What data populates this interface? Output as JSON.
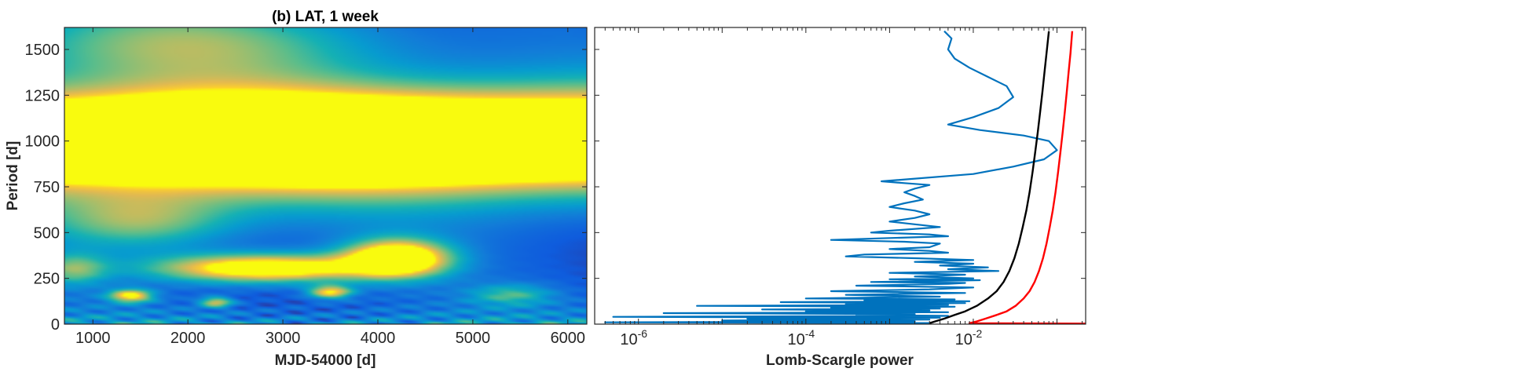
{
  "chart_data": [
    {
      "type": "heatmap",
      "title": "(b) LAT, 1 week",
      "xlabel": "MJD-54000 [d]",
      "ylabel": "Period [d]",
      "xlim": [
        700,
        6200
      ],
      "ylim": [
        0,
        1620
      ],
      "xticks": [
        1000,
        2000,
        3000,
        4000,
        5000,
        6000
      ],
      "yticks": [
        0,
        250,
        500,
        750,
        1000,
        1250,
        1500
      ],
      "colormap": "parula",
      "features": [
        {
          "t": 3500,
          "period": 1000,
          "sigma_t": 5000,
          "sigma_p": 170,
          "power": 1.6
        },
        {
          "t": 3000,
          "period": 1000,
          "sigma_t": 6000,
          "sigma_p": 250,
          "power": 0.55
        },
        {
          "t": 2000,
          "period": 1540,
          "sigma_t": 1500,
          "sigma_p": 160,
          "power": 0.55
        },
        {
          "t": 1500,
          "period": 560,
          "sigma_t": 700,
          "sigma_p": 110,
          "power": 0.55
        },
        {
          "t": 2800,
          "period": 305,
          "sigma_t": 800,
          "sigma_p": 55,
          "power": 1.2
        },
        {
          "t": 4200,
          "period": 360,
          "sigma_t": 380,
          "sigma_p": 70,
          "power": 1.3
        },
        {
          "t": 1400,
          "period": 155,
          "sigma_t": 160,
          "sigma_p": 25,
          "power": 0.9
        },
        {
          "t": 3500,
          "period": 175,
          "sigma_t": 160,
          "sigma_p": 25,
          "power": 0.85
        },
        {
          "t": 2300,
          "period": 120,
          "sigma_t": 120,
          "sigma_p": 20,
          "power": 0.7
        },
        {
          "t": 5400,
          "period": 160,
          "sigma_t": 300,
          "sigma_p": 40,
          "power": 0.4
        },
        {
          "t": 800,
          "period": 300,
          "sigma_t": 250,
          "sigma_p": 60,
          "power": 0.5
        }
      ]
    },
    {
      "type": "line",
      "xscale": "log",
      "xlabel": "Lomb-Scargle power",
      "ylabel": "",
      "xlim": [
        3e-07,
        0.22
      ],
      "ylim": [
        0,
        1620
      ],
      "xticks": [
        {
          "value": 1e-06,
          "base": "10",
          "exp": "-6"
        },
        {
          "value": 0.0001,
          "base": "10",
          "exp": "-4"
        },
        {
          "value": 0.01,
          "base": "10",
          "exp": "-2"
        }
      ],
      "series": [
        {
          "color": "#0072BD",
          "points": [
            [
              0.0045,
              1600
            ],
            [
              0.0055,
              1560
            ],
            [
              0.005,
              1500
            ],
            [
              0.006,
              1450
            ],
            [
              0.009,
              1400
            ],
            [
              0.015,
              1350
            ],
            [
              0.025,
              1300
            ],
            [
              0.03,
              1240
            ],
            [
              0.02,
              1180
            ],
            [
              0.01,
              1130
            ],
            [
              0.005,
              1090
            ],
            [
              0.012,
              1060
            ],
            [
              0.04,
              1030
            ],
            [
              0.08,
              1000
            ],
            [
              0.1,
              950
            ],
            [
              0.07,
              900
            ],
            [
              0.03,
              860
            ],
            [
              0.01,
              820
            ],
            [
              0.0008,
              780
            ],
            [
              0.0015,
              770
            ],
            [
              0.003,
              760
            ],
            [
              0.002,
              740
            ],
            [
              0.0015,
              720
            ],
            [
              0.002,
              700
            ],
            [
              0.0025,
              680
            ],
            [
              0.0015,
              660
            ],
            [
              0.001,
              640
            ],
            [
              0.002,
              620
            ],
            [
              0.003,
              600
            ],
            [
              0.002,
              580
            ],
            [
              0.001,
              560
            ],
            [
              0.002,
              545
            ],
            [
              0.004,
              530
            ],
            [
              0.001,
              510
            ],
            [
              0.0006,
              500
            ],
            [
              0.003,
              490
            ],
            [
              0.005,
              480
            ],
            [
              0.001,
              470
            ],
            [
              0.0002,
              460
            ],
            [
              0.0015,
              450
            ],
            [
              0.004,
              440
            ],
            [
              0.003,
              420
            ],
            [
              0.001,
              410
            ],
            [
              0.003,
              400
            ],
            [
              0.005,
              390
            ],
            [
              0.0005,
              380
            ],
            [
              0.0003,
              370
            ],
            [
              0.002,
              360
            ],
            [
              0.01,
              350
            ],
            [
              0.002,
              340
            ],
            [
              0.01,
              330
            ],
            [
              0.004,
              320
            ],
            [
              0.015,
              310
            ],
            [
              0.005,
              300
            ],
            [
              0.02,
              290
            ],
            [
              0.001,
              280
            ],
            [
              0.008,
              270
            ],
            [
              0.002,
              260
            ],
            [
              0.01,
              250
            ],
            [
              0.001,
              245
            ],
            [
              0.012,
              240
            ],
            [
              0.0006,
              230
            ],
            [
              0.008,
              225
            ],
            [
              0.005,
              220
            ],
            [
              0.0004,
              210
            ],
            [
              0.01,
              200
            ],
            [
              0.003,
              190
            ],
            [
              0.0002,
              180
            ],
            [
              0.008,
              170
            ],
            [
              0.0003,
              160
            ],
            [
              0.004,
              150
            ],
            [
              0.0001,
              140
            ],
            [
              0.006,
              135
            ],
            [
              0.0005,
              130
            ],
            [
              0.009,
              125
            ],
            [
              5e-05,
              120
            ],
            [
              0.008,
              115
            ],
            [
              0.0003,
              110
            ],
            [
              0.005,
              105
            ],
            [
              5e-06,
              100
            ],
            [
              0.006,
              95
            ],
            [
              0.0002,
              90
            ],
            [
              0.004,
              85
            ],
            [
              3e-05,
              80
            ],
            [
              0.003,
              75
            ],
            [
              0.0001,
              70
            ],
            [
              0.005,
              65
            ],
            [
              2e-06,
              60
            ],
            [
              0.002,
              55
            ],
            [
              0.0004,
              50
            ],
            [
              0.005,
              45
            ],
            [
              5e-07,
              40
            ],
            [
              0.004,
              35
            ],
            [
              2e-05,
              30
            ],
            [
              0.003,
              25
            ],
            [
              1e-05,
              20
            ],
            [
              0.002,
              15
            ],
            [
              4e-07,
              10
            ],
            [
              0.003,
              6
            ]
          ]
        },
        {
          "color": "#000000",
          "points": [
            [
              0.003,
              5
            ],
            [
              0.0035,
              15
            ],
            [
              0.0045,
              30
            ],
            [
              0.006,
              50
            ],
            [
              0.008,
              70
            ],
            [
              0.011,
              100
            ],
            [
              0.015,
              140
            ],
            [
              0.019,
              180
            ],
            [
              0.023,
              230
            ],
            [
              0.027,
              290
            ],
            [
              0.031,
              360
            ],
            [
              0.035,
              440
            ],
            [
              0.039,
              530
            ],
            [
              0.043,
              620
            ],
            [
              0.047,
              720
            ],
            [
              0.051,
              830
            ],
            [
              0.055,
              940
            ],
            [
              0.059,
              1050
            ],
            [
              0.063,
              1160
            ],
            [
              0.067,
              1270
            ],
            [
              0.071,
              1380
            ],
            [
              0.075,
              1480
            ],
            [
              0.08,
              1600
            ]
          ]
        },
        {
          "color": "#FF0000",
          "points": [
            [
              0.22,
              3
            ],
            [
              0.009,
              5
            ],
            [
              0.011,
              15
            ],
            [
              0.014,
              30
            ],
            [
              0.019,
              50
            ],
            [
              0.025,
              70
            ],
            [
              0.032,
              100
            ],
            [
              0.04,
              140
            ],
            [
              0.047,
              180
            ],
            [
              0.054,
              230
            ],
            [
              0.061,
              290
            ],
            [
              0.068,
              360
            ],
            [
              0.075,
              440
            ],
            [
              0.082,
              530
            ],
            [
              0.089,
              620
            ],
            [
              0.096,
              720
            ],
            [
              0.103,
              830
            ],
            [
              0.11,
              940
            ],
            [
              0.117,
              1050
            ],
            [
              0.124,
              1160
            ],
            [
              0.131,
              1270
            ],
            [
              0.138,
              1380
            ],
            [
              0.145,
              1480
            ],
            [
              0.152,
              1600
            ]
          ]
        }
      ]
    }
  ]
}
